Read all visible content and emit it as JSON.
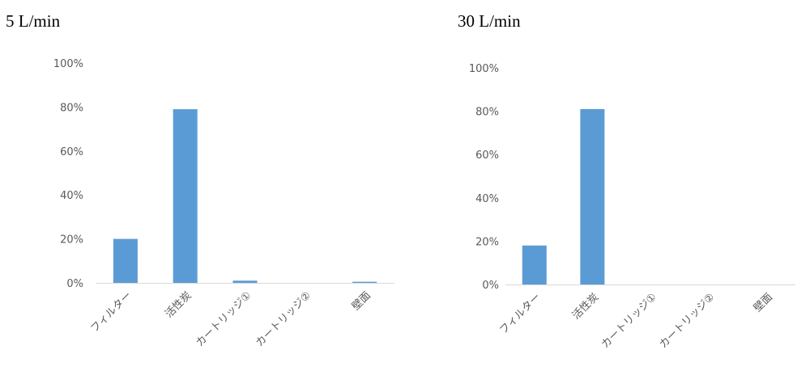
{
  "chart_data": [
    {
      "type": "bar",
      "title": "5 L/min",
      "categories": [
        "フィルター",
        "活性炭",
        "カートリッジ①",
        "カートリッジ②",
        "壁面"
      ],
      "values": [
        20,
        79,
        1,
        0,
        0.5
      ],
      "ylim": [
        0,
        100
      ],
      "yticks": [
        "0%",
        "20%",
        "40%",
        "60%",
        "80%",
        "100%"
      ],
      "grid": false,
      "bar_color": "#5b9bd5"
    },
    {
      "type": "bar",
      "title": "30 L/min",
      "categories": [
        "フィルター",
        "活性炭",
        "カートリッジ①",
        "カートリッジ②",
        "壁面"
      ],
      "values": [
        18,
        81,
        0,
        0,
        0
      ],
      "ylim": [
        0,
        100
      ],
      "yticks": [
        "0%",
        "20%",
        "40%",
        "60%",
        "80%",
        "100%"
      ],
      "grid": false,
      "bar_color": "#5b9bd5"
    }
  ]
}
